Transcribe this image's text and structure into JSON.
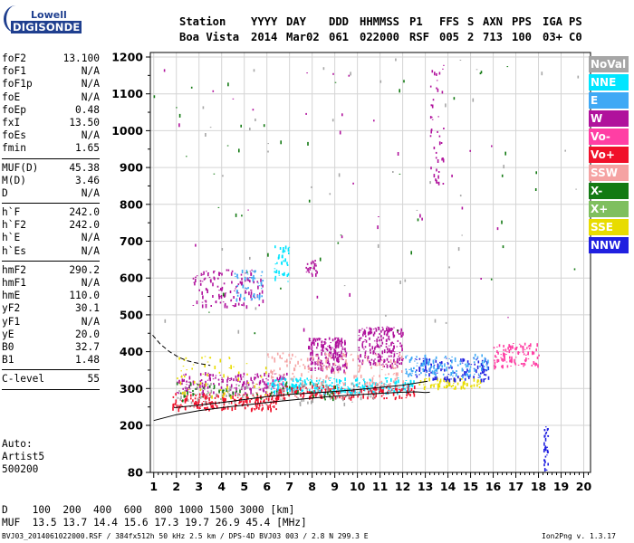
{
  "logo": {
    "top": "Lowell",
    "bottom": "DIGISONDE"
  },
  "header": {
    "row1": [
      "Station",
      "YYYY",
      "DAY",
      "DDD",
      "HHMMSS",
      "P1",
      "FFS",
      "S",
      "AXN",
      "PPS",
      "IGA",
      "PS"
    ],
    "row2": [
      "Boa Vista",
      "2014",
      "Mar02",
      "061",
      "022000",
      "RSF",
      "005",
      "2",
      "713",
      "100",
      "03+",
      "C0"
    ]
  },
  "params": {
    "group1": [
      {
        "name": "foF2",
        "value": "13.100"
      },
      {
        "name": "foF1",
        "value": "N/A"
      },
      {
        "name": "foF1p",
        "value": "N/A"
      },
      {
        "name": "foE",
        "value": "N/A"
      },
      {
        "name": "foEp",
        "value": "0.48"
      },
      {
        "name": "fxI",
        "value": "13.50"
      },
      {
        "name": "foEs",
        "value": "N/A"
      },
      {
        "name": "fmin",
        "value": "1.65"
      }
    ],
    "group2": [
      {
        "name": "MUF(D)",
        "value": "45.38"
      },
      {
        "name": "M(D)",
        "value": "3.46"
      },
      {
        "name": "D",
        "value": "N/A"
      }
    ],
    "group3": [
      {
        "name": "h`F",
        "value": "242.0"
      },
      {
        "name": "h`F2",
        "value": "242.0"
      },
      {
        "name": "h`E",
        "value": "N/A"
      },
      {
        "name": "h`Es",
        "value": "N/A"
      }
    ],
    "group4": [
      {
        "name": "hmF2",
        "value": "290.2"
      },
      {
        "name": "hmF1",
        "value": "N/A"
      },
      {
        "name": "hmE",
        "value": "110.0"
      },
      {
        "name": "yF2",
        "value": "30.1"
      },
      {
        "name": "yF1",
        "value": "N/A"
      },
      {
        "name": "yE",
        "value": "20.0"
      },
      {
        "name": "B0",
        "value": "32.7"
      },
      {
        "name": "B1",
        "value": "1.48"
      }
    ],
    "group5": [
      {
        "name": "C-level",
        "value": "55"
      }
    ]
  },
  "auto": {
    "line1": "Auto:",
    "line2": "Artist5",
    "line3": "500200"
  },
  "legend": [
    {
      "label": "NoVal",
      "color": "#a6a6a6"
    },
    {
      "label": "NNE",
      "color": "#00e5ff"
    },
    {
      "label": "E",
      "color": "#3fa9f5"
    },
    {
      "label": "W",
      "color": "#b0129c"
    },
    {
      "label": "Vo-",
      "color": "#ff3fa4"
    },
    {
      "label": "Vo+",
      "color": "#f0102a"
    },
    {
      "label": "SSW",
      "color": "#f5a3a3"
    },
    {
      "label": "X-",
      "color": "#137a13"
    },
    {
      "label": "X+",
      "color": "#7fbf5f"
    },
    {
      "label": "SSE",
      "color": "#e8dc00"
    },
    {
      "label": "NNW",
      "color": "#2020e0"
    }
  ],
  "footer": {
    "d_row": "D    100  200  400  600  800 1000 1500 3000 [km]",
    "muf_row": "MUF  13.5 13.7 14.4 15.6 17.3 19.7 26.9 45.4 [MHz]",
    "file_info": "BVJ03_2014061022000.RSF / 384fx512h 50 kHz 2.5 km / DPS-4D BVJ03 003 / 2.8 N 299.3 E",
    "version": "Ion2Png v. 1.3.17"
  },
  "chart_data": {
    "type": "scatter",
    "x_ticks": [
      "1",
      "2",
      "3",
      "4",
      "5",
      "6",
      "7",
      "8",
      "9",
      "10",
      "11",
      "12",
      "13",
      "14",
      "15",
      "16",
      "17",
      "18",
      "19",
      "20"
    ],
    "y_ticks": [
      "80",
      "200",
      "300",
      "400",
      "500",
      "600",
      "700",
      "800",
      "900",
      "1000",
      "1100",
      "1200"
    ],
    "xlim": [
      0.85,
      20.3
    ],
    "ylim": [
      80,
      1220
    ],
    "grid": true,
    "legend_position": "right",
    "traces": [
      {
        "name": "profile",
        "points": [
          [
            1,
            213
          ],
          [
            2,
            229
          ],
          [
            3,
            240
          ],
          [
            4,
            248
          ],
          [
            5,
            255
          ],
          [
            6,
            262
          ],
          [
            7,
            268
          ],
          [
            8,
            274
          ],
          [
            9,
            279
          ],
          [
            10,
            283
          ],
          [
            11,
            287
          ],
          [
            12,
            290
          ],
          [
            12.6,
            291
          ],
          [
            13,
            289
          ],
          [
            13.2,
            290
          ]
        ]
      },
      {
        "name": "trace2",
        "points": [
          [
            1.9,
            248
          ],
          [
            3,
            255
          ],
          [
            4,
            262
          ],
          [
            5,
            270
          ],
          [
            6,
            278
          ],
          [
            7,
            284
          ],
          [
            8,
            288
          ],
          [
            9,
            292
          ],
          [
            10,
            297
          ],
          [
            11,
            303
          ],
          [
            12,
            309
          ],
          [
            12.6,
            315
          ],
          [
            13.1,
            320
          ]
        ]
      },
      {
        "name": "dashed",
        "points": [
          [
            0.95,
            445
          ],
          [
            1.3,
            420
          ],
          [
            1.7,
            400
          ],
          [
            2.1,
            385
          ],
          [
            2.5,
            375
          ],
          [
            3,
            368
          ],
          [
            3.5,
            363
          ]
        ]
      }
    ],
    "clusters": [
      {
        "color": "#f0102a",
        "x": [
          1.8,
          6.5
        ],
        "y": [
          245,
          290
        ],
        "n": 220
      },
      {
        "color": "#b0129c",
        "x": [
          2.0,
          7.0
        ],
        "y": [
          290,
          345
        ],
        "n": 180
      },
      {
        "color": "#b0129c",
        "x": [
          2.7,
          5.8
        ],
        "y": [
          525,
          625
        ],
        "n": 130
      },
      {
        "color": "#3fa9f5",
        "x": [
          4.5,
          5.8
        ],
        "y": [
          545,
          625
        ],
        "n": 50
      },
      {
        "color": "#00e5ff",
        "x": [
          6.3,
          7.0
        ],
        "y": [
          590,
          690
        ],
        "n": 40
      },
      {
        "color": "#b0129c",
        "x": [
          7.7,
          8.2
        ],
        "y": [
          610,
          650
        ],
        "n": 25
      },
      {
        "color": "#b0129c",
        "x": [
          7.8,
          9.5
        ],
        "y": [
          350,
          440
        ],
        "n": 200
      },
      {
        "color": "#b0129c",
        "x": [
          10.0,
          12.0
        ],
        "y": [
          360,
          470
        ],
        "n": 200
      },
      {
        "color": "#00e5ff",
        "x": [
          6.0,
          12.5
        ],
        "y": [
          290,
          330
        ],
        "n": 260
      },
      {
        "color": "#f0102a",
        "x": [
          6.5,
          12.5
        ],
        "y": [
          275,
          310
        ],
        "n": 180
      },
      {
        "color": "#f5a3a3",
        "x": [
          6.0,
          12.0
        ],
        "y": [
          310,
          400
        ],
        "n": 160
      },
      {
        "color": "#a6a6a6",
        "x": [
          2.0,
          11.0
        ],
        "y": [
          260,
          320
        ],
        "n": 120
      },
      {
        "color": "#137a13",
        "x": [
          2.0,
          9.0
        ],
        "y": [
          270,
          320
        ],
        "n": 60
      },
      {
        "color": "#e8dc00",
        "x": [
          2.0,
          6.0
        ],
        "y": [
          280,
          390
        ],
        "n": 60
      },
      {
        "color": "#e8dc00",
        "x": [
          12.7,
          15.5
        ],
        "y": [
          300,
          330
        ],
        "n": 70
      },
      {
        "color": "#2020e0",
        "x": [
          12.5,
          15.8
        ],
        "y": [
          325,
          385
        ],
        "n": 130
      },
      {
        "color": "#3fa9f5",
        "x": [
          12.0,
          15.8
        ],
        "y": [
          335,
          395
        ],
        "n": 120
      },
      {
        "color": "#ff3fa4",
        "x": [
          16.0,
          18.0
        ],
        "y": [
          360,
          425
        ],
        "n": 110
      },
      {
        "color": "#b0129c",
        "x": [
          13.2,
          13.8
        ],
        "y": [
          850,
          1190
        ],
        "n": 40
      },
      {
        "color": "#2020e0",
        "x": [
          18.2,
          18.4
        ],
        "y": [
          85,
          200
        ],
        "n": 35
      },
      {
        "color": "#137a13",
        "x": [
          0.9,
          20.0
        ],
        "y": [
          450,
          1200
        ],
        "n": 45
      },
      {
        "color": "#b0129c",
        "x": [
          0.9,
          20.0
        ],
        "y": [
          450,
          1200
        ],
        "n": 35
      },
      {
        "color": "#a6a6a6",
        "x": [
          0.9,
          20.0
        ],
        "y": [
          450,
          1200
        ],
        "n": 45
      }
    ]
  }
}
